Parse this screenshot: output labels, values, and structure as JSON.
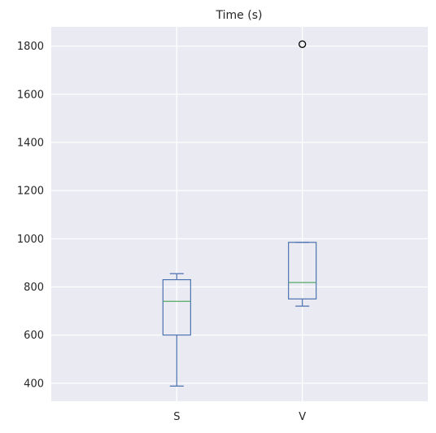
{
  "chart_data": {
    "type": "box",
    "title": "Time (s)",
    "xlabel": "",
    "ylabel": "",
    "categories": [
      "S",
      "V"
    ],
    "boxes": [
      {
        "name": "S",
        "whisker_low": 388,
        "q1": 600,
        "median": 740,
        "q3": 830,
        "whisker_high": 855,
        "outliers": []
      },
      {
        "name": "V",
        "whisker_low": 720,
        "q1": 750,
        "median": 818,
        "q3": 985,
        "whisker_high": 985,
        "outliers": [
          1808
        ]
      }
    ],
    "ylim": [
      325,
      1880
    ],
    "yticks": [
      400,
      600,
      800,
      1000,
      1200,
      1400,
      1600,
      1800
    ],
    "grid": true,
    "colors": {
      "background": "#eaeaf2",
      "grid": "#ffffff",
      "box": "#4c72b0",
      "median": "#55a868",
      "outlier": "#000000"
    }
  }
}
